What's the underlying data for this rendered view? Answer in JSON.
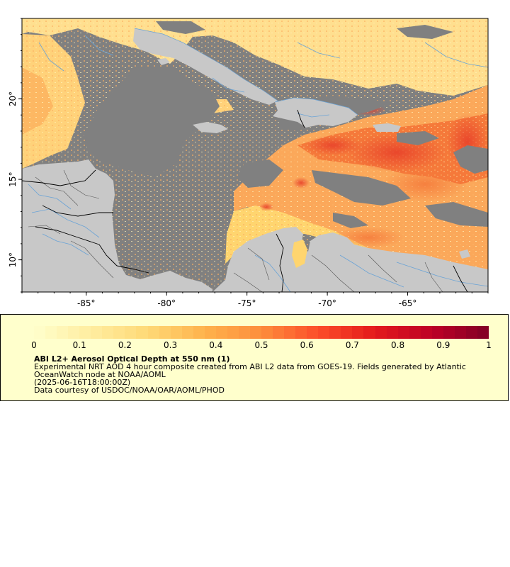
{
  "map": {
    "axes": {
      "lon_ticks": [
        -85,
        -80,
        -75,
        -70,
        -65
      ],
      "lon_labels": [
        "-85°",
        "-80°",
        "-75°",
        "-70°",
        "-65°"
      ],
      "lat_ticks": [
        10,
        15,
        20
      ],
      "lat_labels": [
        "10°",
        "15°",
        "20°"
      ],
      "lon_range": [
        -89,
        -60
      ],
      "lat_range": [
        8,
        25
      ]
    },
    "colors": {
      "ocean_nodata": "#808080",
      "land": "#c8c8c8",
      "low_aod": "#ffe9a6",
      "mid_aod": "#fba85a",
      "high_aod": "#e8412a",
      "max_aod": "#800026",
      "rivers": "#6aa3d6",
      "borders": "#000000",
      "admin_lines": "#555555"
    }
  },
  "legend": {
    "title": "ABI L2+ Aerosol Optical Depth at 550 nm (1)",
    "desc1": "Experimental NRT AOD 4 hour composite created from ABI L2 data from GOES-19. Fields generated by Atlantic",
    "desc2": "OceanWatch node at NOAA/AOML",
    "timestamp": "(2025-06-16T18:00:00Z)",
    "credit": "Data courtesy of USDOC/NOAA/OAR/AOML/PHOD",
    "colorbar_range": [
      0,
      1
    ],
    "ticks": [
      "0",
      "0.1",
      "0.2",
      "0.3",
      "0.4",
      "0.5",
      "0.6",
      "0.7",
      "0.8",
      "0.9",
      "1"
    ],
    "colorscale": [
      "#ffffcc",
      "#ffeda0",
      "#fed976",
      "#feb24c",
      "#fd8d3c",
      "#fc4e2a",
      "#e31a1c",
      "#bd0026",
      "#800026"
    ]
  }
}
